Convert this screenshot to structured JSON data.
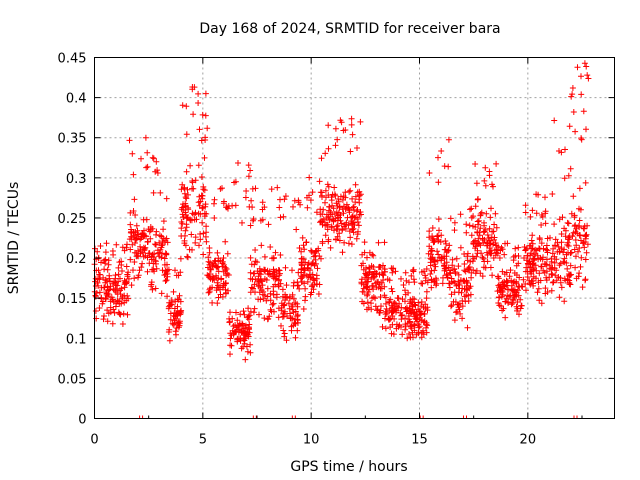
{
  "chart_data": {
    "type": "scatter",
    "title": "Day 168 of 2024, SRMTID for receiver bara",
    "xlabel": "GPS time / hours",
    "ylabel": "SRMTID / TECUs",
    "xlim": [
      0,
      24
    ],
    "ylim": [
      0,
      0.45
    ],
    "xticks": [
      0,
      5,
      10,
      15,
      20
    ],
    "xtick_labels": [
      "0",
      "5",
      "10",
      "15",
      "20"
    ],
    "yticks": [
      0,
      0.05,
      0.1,
      0.15,
      0.2,
      0.25,
      0.3,
      0.35,
      0.4,
      0.45
    ],
    "ytick_labels": [
      "0",
      "0.05",
      "0.1",
      "0.15",
      "0.2",
      "0.25",
      "0.3",
      "0.35",
      "0.4",
      "0.45"
    ],
    "grid": true,
    "marker": "+",
    "color": "#ff0000",
    "series": [
      {
        "name": "SRMTID",
        "segments": [
          {
            "t0": 0.0,
            "t1": 1.6,
            "level": 0.16,
            "spread": 0.05,
            "peak": 0.22
          },
          {
            "t0": 1.6,
            "t1": 2.6,
            "level": 0.22,
            "spread": 0.06,
            "peak": 0.355
          },
          {
            "t0": 2.6,
            "t1": 3.4,
            "level": 0.2,
            "spread": 0.06,
            "peak": 0.33
          },
          {
            "t0": 3.4,
            "t1": 4.0,
            "level": 0.13,
            "spread": 0.04,
            "peak": 0.2
          },
          {
            "t0": 4.0,
            "t1": 5.2,
            "level": 0.26,
            "spread": 0.07,
            "peak": 0.415
          },
          {
            "t0": 5.2,
            "t1": 6.2,
            "level": 0.18,
            "spread": 0.05,
            "peak": 0.3
          },
          {
            "t0": 6.2,
            "t1": 7.2,
            "level": 0.11,
            "spread": 0.04,
            "peak": 0.345
          },
          {
            "t0": 7.2,
            "t1": 8.6,
            "level": 0.17,
            "spread": 0.06,
            "peak": 0.29
          },
          {
            "t0": 8.6,
            "t1": 9.4,
            "level": 0.14,
            "spread": 0.06,
            "peak": 0.28
          },
          {
            "t0": 9.4,
            "t1": 10.4,
            "level": 0.19,
            "spread": 0.05,
            "peak": 0.31
          },
          {
            "t0": 10.4,
            "t1": 12.3,
            "level": 0.25,
            "spread": 0.06,
            "peak": 0.38
          },
          {
            "t0": 12.3,
            "t1": 13.4,
            "level": 0.17,
            "spread": 0.05,
            "peak": 0.22
          },
          {
            "t0": 13.4,
            "t1": 15.4,
            "level": 0.13,
            "spread": 0.04,
            "peak": 0.19
          },
          {
            "t0": 15.4,
            "t1": 16.4,
            "level": 0.2,
            "spread": 0.06,
            "peak": 0.35
          },
          {
            "t0": 16.4,
            "t1": 17.4,
            "level": 0.17,
            "spread": 0.06,
            "peak": 0.27
          },
          {
            "t0": 17.4,
            "t1": 18.6,
            "level": 0.22,
            "spread": 0.06,
            "peak": 0.32
          },
          {
            "t0": 18.6,
            "t1": 19.8,
            "level": 0.16,
            "spread": 0.04,
            "peak": 0.22
          },
          {
            "t0": 19.8,
            "t1": 21.2,
            "level": 0.19,
            "spread": 0.05,
            "peak": 0.28
          },
          {
            "t0": 21.2,
            "t1": 22.0,
            "level": 0.2,
            "spread": 0.07,
            "peak": 0.38
          },
          {
            "t0": 22.0,
            "t1": 22.8,
            "level": 0.22,
            "spread": 0.07,
            "peak": 0.445
          }
        ]
      }
    ],
    "x_axis_marks": [
      2.15,
      7.4,
      9.2,
      15.1,
      17.1,
      22.2
    ]
  }
}
